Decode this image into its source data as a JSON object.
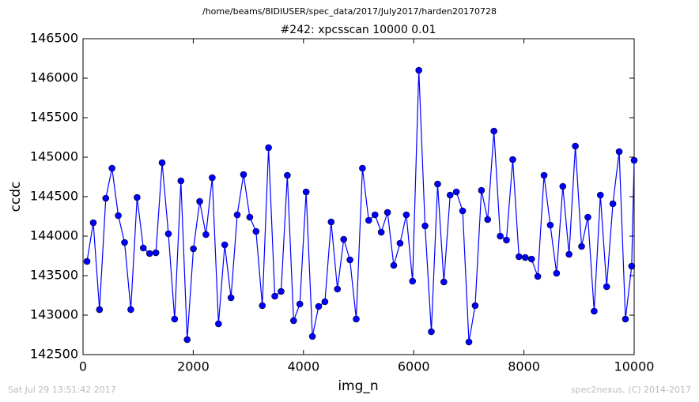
{
  "chart_data": {
    "type": "line",
    "suptitle": "/home/beams/8IDIUSER/spec_data/2017/July2017/harden20170728",
    "title": "#242: xpcsscan 10000 0.01",
    "xlabel": "img_n",
    "ylabel": "ccdc",
    "footer_left": "Sat Jul 29 13:51:42 2017",
    "footer_right": "spec2nexus, (C) 2014-2017",
    "color": "#0000ff",
    "x": [
      72,
      186,
      299,
      413,
      526,
      640,
      754,
      867,
      981,
      1094,
      1208,
      1322,
      1435,
      1549,
      1662,
      1776,
      1890,
      2003,
      2117,
      2230,
      2344,
      2458,
      2571,
      2685,
      2798,
      2912,
      3026,
      3139,
      3253,
      3366,
      3480,
      3594,
      3707,
      3821,
      3934,
      4048,
      4162,
      4275,
      4389,
      4502,
      4616,
      4730,
      4843,
      4957,
      5070,
      5184,
      5298,
      5411,
      5525,
      5638,
      5752,
      5866,
      5979,
      6093,
      6206,
      6320,
      6434,
      6547,
      6661,
      6774,
      6888,
      7002,
      7115,
      7229,
      7342,
      7456,
      7570,
      7683,
      7797,
      7910,
      8024,
      8138,
      8251,
      8365,
      8478,
      8592,
      8706,
      8819,
      8933,
      9046,
      9160,
      9274,
      9387,
      9501,
      9614,
      9728,
      9842,
      9955,
      10000
    ],
    "values": [
      143680,
      144170,
      143070,
      144480,
      144860,
      144260,
      143920,
      143070,
      144490,
      143850,
      143780,
      143790,
      144930,
      144030,
      142950,
      144700,
      142690,
      143840,
      144440,
      144020,
      144740,
      142890,
      143890,
      143220,
      144270,
      144780,
      144240,
      144060,
      143120,
      145120,
      143240,
      143300,
      144770,
      142930,
      143140,
      144560,
      142730,
      143110,
      143170,
      144180,
      143330,
      143960,
      143700,
      142950,
      144860,
      144200,
      144270,
      144050,
      144300,
      143630,
      143910,
      144270,
      143430,
      146100,
      144130,
      142790,
      144660,
      143420,
      144520,
      144560,
      144320,
      142660,
      143120,
      144580,
      144210,
      145330,
      144000,
      143950,
      144970,
      143740,
      143730,
      143710,
      143490,
      144770,
      144140,
      143530,
      144630,
      143770,
      145140,
      143870,
      144240,
      143050,
      144520,
      143360,
      144410,
      145070,
      142950,
      143620,
      144960
    ],
    "xlim": [
      0,
      10000
    ],
    "xticks": [
      0,
      2000,
      4000,
      6000,
      8000,
      10000
    ],
    "ylim": [
      142500,
      146500
    ],
    "yticks": [
      142500,
      143000,
      143500,
      144000,
      144500,
      145000,
      145500,
      146000,
      146500
    ]
  }
}
